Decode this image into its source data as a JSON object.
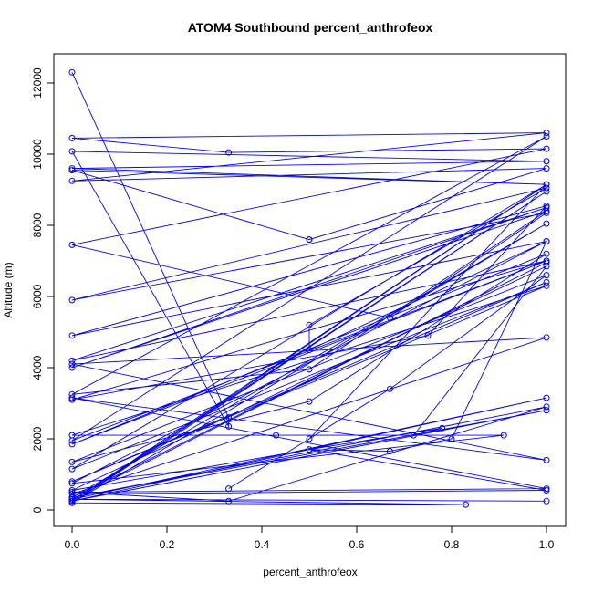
{
  "chart_data": {
    "type": "line",
    "title": "ATOM4 Southbound percent_anthrofeox",
    "xlabel": "percent_anthrofeox",
    "ylabel": "Altitude (m)",
    "xlim": [
      0,
      1
    ],
    "ylim": [
      0,
      12000
    ],
    "x_ticks": [
      0,
      0.2,
      0.4,
      0.6,
      0.8,
      1
    ],
    "x_tick_labels": [
      "0.0",
      "0.2",
      "0.4",
      "0.6",
      "0.8",
      "1.0"
    ],
    "y_ticks": [
      0,
      2000,
      4000,
      6000,
      8000,
      10000,
      12000
    ],
    "y_tick_labels": [
      "0",
      "2000",
      "4000",
      "6000",
      "8000",
      "10000",
      "12000"
    ],
    "grid": false,
    "legend": "none",
    "color": "#0000ff",
    "marker": "open-circle",
    "series": [
      {
        "x": [
          0.0,
          0.33,
          0.33,
          0.0,
          1.0,
          1.0,
          0.0,
          1.0,
          0.0,
          0.5,
          0.5,
          1.0,
          0.0,
          1.0,
          0.0,
          0.33,
          1.0,
          0.0,
          0.67,
          1.0,
          0.0,
          1.0,
          0.5,
          0.5,
          1.0,
          0.0,
          1.0,
          0.75,
          0.0,
          1.0,
          0.0,
          1.0,
          0.0,
          1.0,
          0.5,
          0.0,
          1.0,
          0.0,
          1.0,
          0.0,
          1.0,
          0.5,
          0.0,
          1.0,
          0.67,
          0.33,
          0.5,
          1.0,
          0.0,
          1.0,
          0.0,
          1.0,
          0.0,
          0.43,
          0.91,
          0.0,
          1.0,
          0.8,
          0.67,
          0.5,
          0.0,
          1.0,
          0.72,
          0.78,
          0.5,
          1.0,
          0.0,
          1.0,
          0.0,
          1.0,
          0.0,
          1.0,
          0.0,
          0.33,
          1.0,
          0.0,
          1.0,
          0.0,
          1.0,
          0.0,
          0.83,
          0.0,
          1.0,
          0.0,
          1.0,
          0.0,
          1.0,
          0.0,
          1.0,
          0.0,
          1.0
        ],
        "y": [
          12300,
          2600,
          2350,
          10080,
          9800,
          9800,
          9600,
          9150,
          9550,
          7600,
          7600,
          9600,
          9250,
          10600,
          10450,
          10050,
          10150,
          7450,
          5400,
          8350,
          5900,
          9050,
          5200,
          4500,
          7550,
          4900,
          8550,
          4900,
          3100,
          7000,
          4200,
          8500,
          4000,
          8400,
          3950,
          3250,
          10500,
          1950,
          7000,
          1850,
          7200,
          3050,
          1350,
          6600,
          3400,
          600,
          2000,
          9150,
          1150,
          6400,
          800,
          6300,
          2100,
          2100,
          2100,
          750,
          7550,
          2000,
          1650,
          1700,
          550,
          6850,
          2100,
          2300,
          1700,
          550,
          450,
          4850,
          4100,
          1400,
          3150,
          600,
          500,
          250,
          2900,
          350,
          2800,
          250,
          3150,
          300,
          150,
          200,
          9150,
          250,
          8950,
          200,
          8050,
          350,
          6950,
          300,
          250
        ]
      }
    ]
  }
}
